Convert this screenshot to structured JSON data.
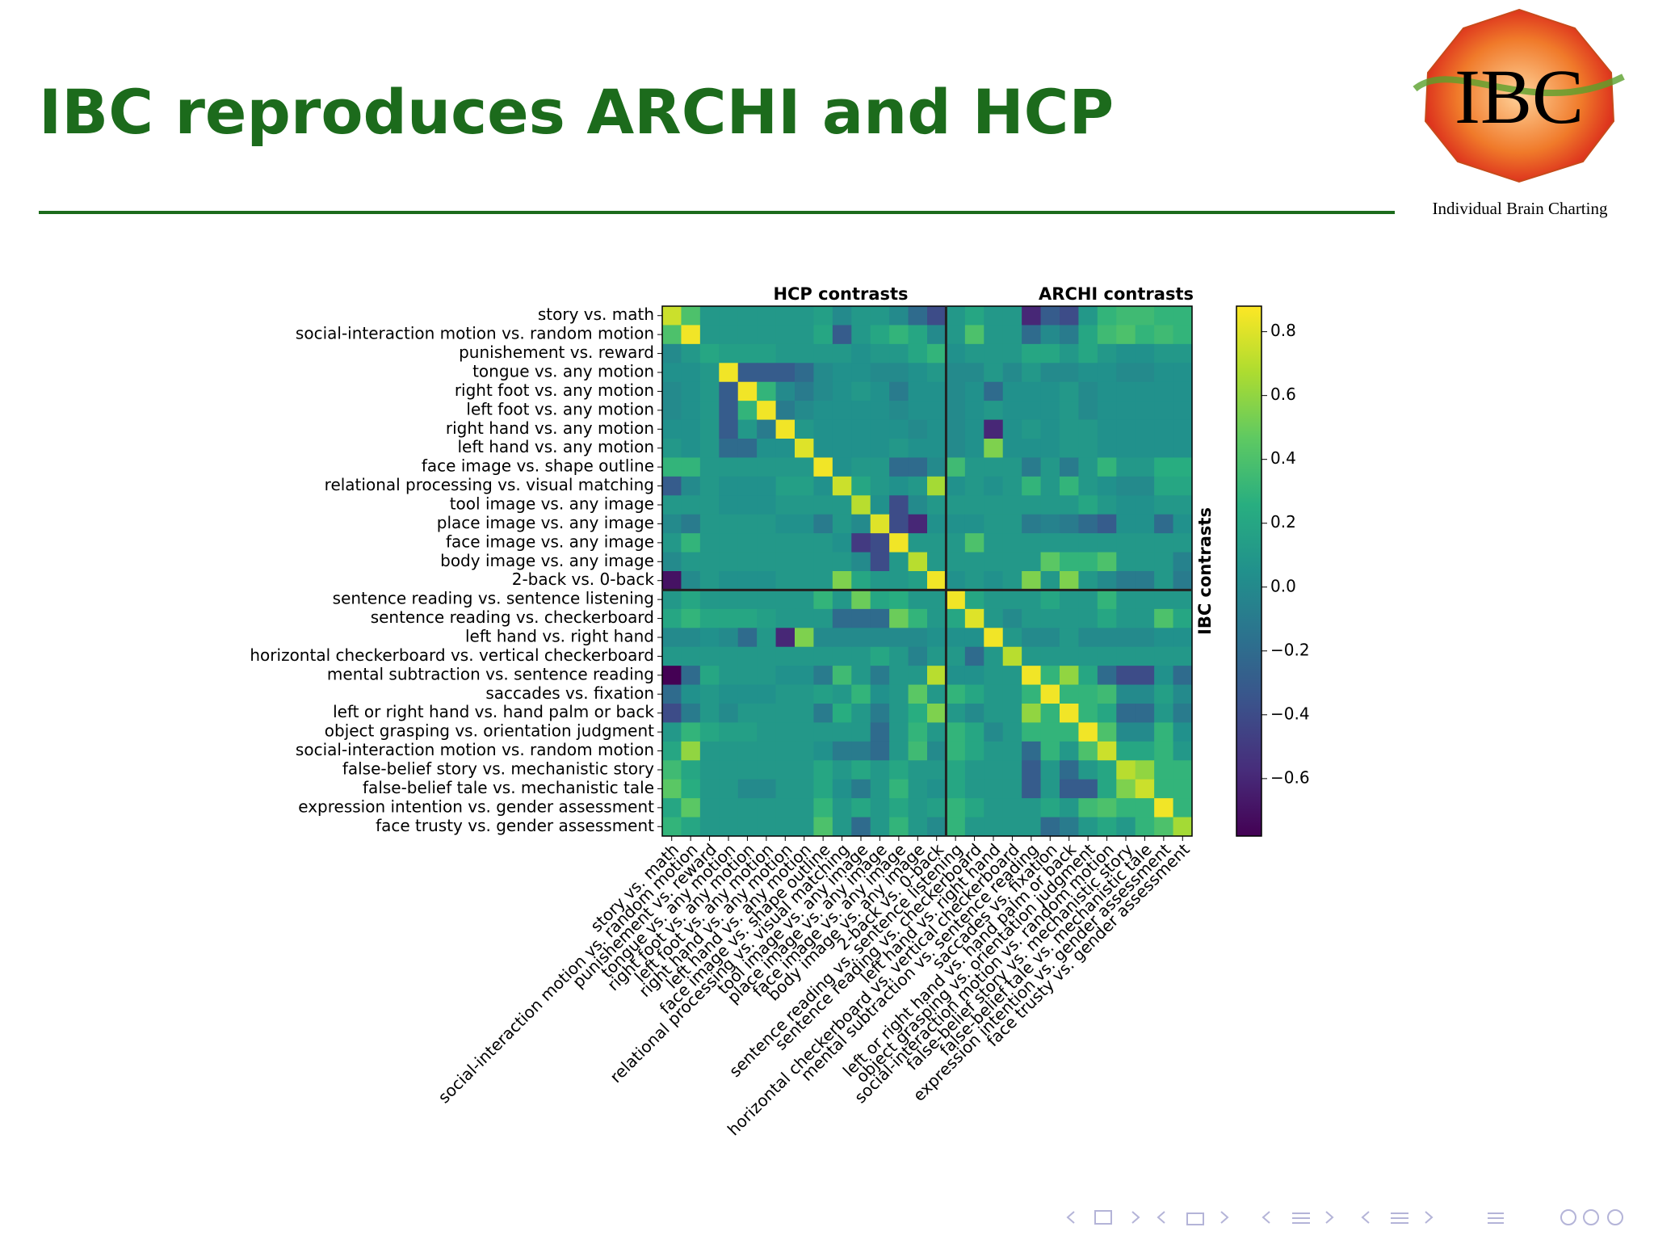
{
  "header": {
    "title": "IBC reproduces ARCHI and HCP"
  },
  "logo": {
    "text": "IBC",
    "caption": "Individual Brain Charting"
  },
  "chart_data": {
    "type": "heatmap",
    "group_titles": [
      "HCP contrasts",
      "ARCHI contrasts"
    ],
    "ylabel": "IBC contrasts",
    "colormap": "viridis",
    "categories": [
      "story vs. math",
      "social-interaction motion vs. random motion",
      "punishement vs. reward",
      "tongue vs. any motion",
      "right foot vs. any motion",
      "left foot vs. any motion",
      "right hand vs. any motion",
      "left hand vs. any motion",
      "face image vs. shape outline",
      "relational processing vs. visual matching",
      "tool image vs. any image",
      "place image vs. any image",
      "face image vs. any image",
      "body image vs. any image",
      "2-back vs. 0-back",
      "sentence reading vs. sentence listening",
      "sentence reading vs. checkerboard",
      "left hand vs. right hand",
      "horizontal checkerboard vs. vertical checkerboard",
      "mental subtraction vs. sentence reading",
      "saccades vs. fixation",
      "left or right hand vs. hand palm or back",
      "object grasping vs. orientation judgment",
      "social-interaction motion vs. random motion",
      "false-belief story vs. mechanistic story",
      "false-belief tale vs. mechanistic tale",
      "expression intention vs. gender assessment",
      "face trusty vs. gender assessment"
    ],
    "values": [
      [
        0.75,
        0.4,
        0.1,
        0.1,
        0.1,
        0.1,
        0.1,
        0.1,
        0.15,
        0.0,
        0.1,
        0.1,
        0.0,
        -0.2,
        -0.4,
        0.1,
        0.2,
        0.1,
        0.1,
        -0.6,
        -0.3,
        -0.4,
        0.1,
        0.3,
        0.35,
        0.35,
        0.3,
        0.3
      ],
      [
        0.4,
        0.85,
        0.1,
        0.1,
        0.1,
        0.1,
        0.1,
        0.1,
        0.2,
        -0.3,
        0.1,
        0.2,
        0.3,
        0.2,
        0.0,
        0.1,
        0.4,
        0.1,
        0.1,
        -0.2,
        0.0,
        -0.1,
        0.2,
        0.35,
        0.4,
        0.3,
        0.35,
        0.3
      ],
      [
        0.0,
        0.1,
        0.2,
        0.15,
        0.15,
        0.15,
        0.1,
        0.1,
        0.1,
        0.1,
        0.05,
        0.1,
        0.1,
        0.2,
        0.3,
        0.05,
        0.1,
        0.1,
        0.1,
        0.2,
        0.2,
        0.1,
        0.2,
        0.1,
        0.05,
        0.05,
        0.1,
        0.1
      ],
      [
        0.05,
        0.05,
        0.1,
        0.85,
        -0.3,
        -0.3,
        -0.3,
        -0.2,
        0.0,
        0.05,
        0.05,
        0.0,
        0.0,
        0.05,
        0.1,
        0.0,
        0.0,
        0.1,
        0.0,
        0.1,
        0.0,
        0.0,
        0.05,
        0.05,
        0.0,
        0.0,
        0.05,
        0.05
      ],
      [
        0.0,
        0.05,
        0.1,
        -0.3,
        0.85,
        0.3,
        0.0,
        -0.1,
        0.0,
        0.05,
        0.1,
        0.05,
        -0.1,
        0.05,
        0.05,
        0.0,
        0.05,
        -0.2,
        0.05,
        0.05,
        0.05,
        0.1,
        0.0,
        0.05,
        0.05,
        0.05,
        0.05,
        0.05
      ],
      [
        0.0,
        0.05,
        0.1,
        -0.3,
        0.3,
        0.85,
        -0.1,
        0.0,
        0.05,
        0.05,
        0.05,
        0.05,
        0.0,
        0.05,
        0.05,
        0.0,
        0.05,
        0.1,
        0.05,
        0.05,
        0.05,
        0.1,
        0.0,
        0.05,
        0.05,
        0.05,
        0.05,
        0.05
      ],
      [
        0.05,
        0.05,
        0.1,
        -0.3,
        0.1,
        -0.1,
        0.85,
        0.1,
        0.05,
        0.05,
        0.05,
        0.05,
        0.05,
        0.0,
        0.05,
        0.0,
        0.05,
        -0.6,
        0.05,
        0.1,
        0.05,
        0.1,
        0.1,
        0.05,
        0.05,
        0.05,
        0.05,
        0.05
      ],
      [
        0.1,
        0.05,
        0.1,
        -0.2,
        -0.2,
        0.05,
        0.05,
        0.8,
        0.05,
        0.05,
        0.05,
        0.05,
        0.1,
        0.05,
        0.05,
        0.0,
        0.05,
        0.55,
        0.05,
        0.05,
        0.05,
        0.1,
        0.1,
        0.05,
        0.05,
        0.05,
        0.05,
        0.05
      ],
      [
        0.3,
        0.3,
        0.1,
        0.1,
        0.1,
        0.1,
        0.1,
        0.1,
        0.85,
        0.05,
        0.1,
        0.1,
        -0.2,
        -0.2,
        0.0,
        0.35,
        0.1,
        0.1,
        0.1,
        -0.1,
        0.1,
        -0.1,
        0.1,
        0.3,
        0.1,
        0.1,
        0.25,
        0.25
      ],
      [
        -0.3,
        0.0,
        0.1,
        0.05,
        0.05,
        0.05,
        0.15,
        0.15,
        0.05,
        0.75,
        0.2,
        0.1,
        0.05,
        0.1,
        0.65,
        0.05,
        0.1,
        0.05,
        0.1,
        0.3,
        0.1,
        0.3,
        0.1,
        0.05,
        0.0,
        0.0,
        0.2,
        0.2
      ],
      [
        0.1,
        0.1,
        0.1,
        0.05,
        0.05,
        0.05,
        0.1,
        0.1,
        0.1,
        0.1,
        0.7,
        0.05,
        -0.4,
        0.0,
        0.1,
        0.1,
        0.1,
        0.1,
        0.1,
        0.1,
        0.1,
        0.1,
        0.2,
        0.1,
        0.05,
        0.05,
        0.1,
        0.1
      ],
      [
        0.0,
        -0.1,
        0.1,
        0.1,
        0.1,
        0.1,
        0.05,
        0.05,
        -0.1,
        0.1,
        0.0,
        0.8,
        -0.4,
        -0.6,
        0.05,
        0.05,
        0.05,
        0.1,
        0.1,
        -0.1,
        -0.05,
        -0.1,
        -0.2,
        -0.3,
        0.05,
        0.05,
        -0.2,
        0.05
      ],
      [
        0.1,
        0.3,
        0.1,
        0.1,
        0.1,
        0.1,
        0.1,
        0.1,
        0.1,
        0.05,
        -0.5,
        -0.4,
        0.85,
        0.1,
        0.1,
        0.1,
        0.4,
        0.1,
        0.1,
        0.1,
        0.1,
        0.1,
        0.1,
        0.1,
        0.1,
        0.1,
        0.1,
        0.1
      ],
      [
        0.0,
        0.1,
        0.1,
        0.1,
        0.1,
        0.1,
        0.1,
        0.1,
        0.1,
        0.1,
        0.0,
        -0.4,
        0.1,
        0.7,
        0.1,
        0.1,
        0.1,
        0.1,
        0.1,
        0.1,
        0.45,
        0.3,
        0.3,
        0.4,
        0.1,
        0.1,
        0.1,
        -0.05
      ],
      [
        -0.7,
        0.0,
        0.1,
        0.05,
        0.05,
        0.05,
        0.1,
        0.1,
        0.1,
        0.55,
        0.2,
        0.1,
        0.1,
        0.15,
        0.85,
        0.05,
        0.1,
        0.05,
        0.1,
        0.55,
        0.1,
        0.55,
        0.1,
        0.0,
        -0.1,
        -0.1,
        0.1,
        -0.1
      ],
      [
        0.1,
        0.2,
        0.1,
        0.1,
        0.1,
        0.1,
        0.1,
        0.1,
        0.3,
        0.1,
        0.5,
        0.2,
        0.25,
        0.1,
        0.1,
        0.85,
        0.2,
        0.1,
        0.1,
        0.1,
        0.2,
        0.1,
        0.1,
        0.3,
        0.1,
        0.1,
        0.1,
        0.1
      ],
      [
        0.2,
        0.3,
        0.2,
        0.2,
        0.2,
        0.15,
        0.1,
        0.1,
        0.1,
        -0.2,
        -0.2,
        -0.2,
        0.5,
        0.3,
        0.1,
        0.2,
        0.8,
        0.1,
        0.0,
        0.1,
        0.1,
        0.1,
        0.1,
        0.2,
        0.1,
        0.1,
        0.4,
        0.2
      ],
      [
        0.0,
        0.0,
        0.05,
        0.0,
        -0.2,
        0.1,
        -0.6,
        0.55,
        0.0,
        0.0,
        0.0,
        0.0,
        0.0,
        0.0,
        0.05,
        0.05,
        0.05,
        0.85,
        0.1,
        0.0,
        0.0,
        0.1,
        0.0,
        0.0,
        0.0,
        0.0,
        0.05,
        0.05
      ],
      [
        0.1,
        0.1,
        0.1,
        0.1,
        0.1,
        0.1,
        0.1,
        0.1,
        0.1,
        0.1,
        0.1,
        0.2,
        0.1,
        -0.05,
        0.1,
        0.1,
        -0.2,
        0.1,
        0.7,
        0.1,
        0.1,
        0.1,
        0.1,
        0.1,
        0.1,
        0.1,
        0.1,
        0.1
      ],
      [
        -0.78,
        -0.2,
        0.2,
        0.1,
        0.1,
        0.1,
        0.05,
        0.05,
        -0.1,
        0.35,
        0.1,
        -0.1,
        0.1,
        0.1,
        0.7,
        0.05,
        0.05,
        0.1,
        0.1,
        0.85,
        0.3,
        0.6,
        0.2,
        -0.2,
        -0.4,
        -0.4,
        0.05,
        -0.2
      ],
      [
        -0.2,
        0.05,
        0.1,
        0.05,
        0.05,
        0.05,
        0.1,
        0.1,
        0.15,
        0.1,
        0.3,
        0.05,
        0.1,
        0.45,
        0.1,
        0.3,
        0.2,
        0.1,
        0.1,
        0.3,
        0.85,
        0.3,
        0.3,
        0.35,
        0.0,
        0.0,
        0.15,
        0.0
      ],
      [
        -0.4,
        -0.1,
        0.1,
        0.0,
        0.1,
        0.1,
        0.1,
        0.1,
        -0.1,
        0.25,
        0.1,
        -0.1,
        0.1,
        0.25,
        0.55,
        0.1,
        0.0,
        0.1,
        0.1,
        0.6,
        0.3,
        0.85,
        0.3,
        0.2,
        -0.2,
        -0.2,
        0.1,
        -0.1
      ],
      [
        0.1,
        0.3,
        0.2,
        0.15,
        0.15,
        0.1,
        0.1,
        0.1,
        0.1,
        0.1,
        0.1,
        -0.2,
        0.1,
        0.3,
        0.1,
        0.3,
        0.2,
        0.0,
        0.1,
        0.3,
        0.3,
        0.3,
        0.85,
        0.4,
        0.0,
        0.0,
        0.3,
        0.05
      ],
      [
        0.2,
        0.6,
        0.1,
        0.1,
        0.1,
        0.1,
        0.1,
        0.1,
        0.05,
        -0.1,
        -0.1,
        -0.2,
        0.1,
        0.35,
        0.0,
        0.3,
        0.2,
        0.1,
        0.1,
        -0.2,
        0.3,
        0.1,
        0.4,
        0.75,
        0.2,
        0.2,
        0.3,
        0.1
      ],
      [
        0.35,
        0.2,
        0.1,
        0.1,
        0.1,
        0.1,
        0.1,
        0.1,
        0.2,
        0.1,
        0.2,
        0.1,
        0.2,
        0.1,
        0.1,
        0.2,
        0.1,
        0.1,
        0.1,
        -0.3,
        0.1,
        -0.2,
        0.1,
        0.2,
        0.7,
        0.6,
        0.3,
        0.3
      ],
      [
        0.45,
        0.25,
        0.1,
        0.1,
        0.0,
        0.0,
        0.1,
        0.1,
        0.2,
        0.05,
        -0.1,
        0.1,
        0.3,
        0.1,
        0.05,
        0.2,
        0.1,
        0.1,
        0.1,
        -0.3,
        0.1,
        -0.3,
        -0.3,
        0.2,
        0.55,
        0.75,
        0.3,
        0.3
      ],
      [
        0.2,
        0.45,
        0.1,
        0.1,
        0.1,
        0.1,
        0.1,
        0.1,
        0.3,
        0.1,
        0.2,
        0.1,
        0.2,
        0.1,
        0.15,
        0.3,
        0.2,
        0.1,
        0.1,
        0.1,
        0.2,
        0.1,
        0.35,
        0.4,
        0.3,
        0.3,
        0.85,
        0.3
      ],
      [
        0.3,
        0.2,
        0.1,
        0.1,
        0.1,
        0.1,
        0.1,
        0.1,
        0.4,
        0.1,
        -0.2,
        0.1,
        0.3,
        0.1,
        0.0,
        0.3,
        0.1,
        0.1,
        0.1,
        0.1,
        -0.2,
        -0.1,
        0.1,
        0.2,
        0.1,
        0.3,
        0.4,
        0.65
      ]
    ],
    "clim": [
      -0.78,
      0.88
    ],
    "cticks": [
      {
        "value": -0.6,
        "label": "−0.6"
      },
      {
        "value": -0.4,
        "label": "−0.4"
      },
      {
        "value": -0.2,
        "label": "−0.2"
      },
      {
        "value": 0.0,
        "label": "0.0"
      },
      0.2,
      0.4,
      0.6,
      0.8
    ]
  }
}
